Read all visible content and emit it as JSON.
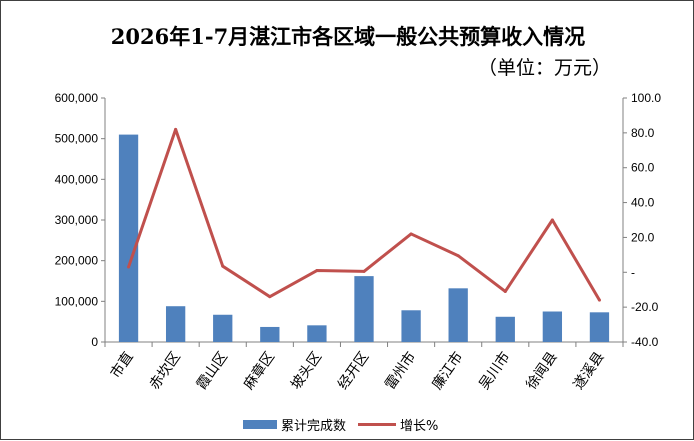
{
  "chart_data": {
    "type": "bar+line",
    "title": "2026年1-7月湛江市各区域一般公共预算收入情况",
    "subtitle": "（单位：万元）",
    "categories": [
      "市直",
      "赤坎区",
      "霞山区",
      "麻章区",
      "坡头区",
      "经开区",
      "雷州市",
      "廉江市",
      "吴川市",
      "徐闻县",
      "遂溪县"
    ],
    "series": [
      {
        "name": "累计完成数",
        "type": "bar",
        "axis": "left",
        "color": "#4f81bd",
        "values": [
          510000,
          88000,
          67000,
          37000,
          41000,
          162000,
          78000,
          132000,
          62000,
          75000,
          73000
        ]
      },
      {
        "name": "增长%",
        "type": "line",
        "axis": "right",
        "color": "#c0504d",
        "values": [
          3.0,
          82.0,
          3.5,
          -14.0,
          1.0,
          0.5,
          22.0,
          9.5,
          -11.0,
          30.0,
          -16.0
        ]
      }
    ],
    "y_left": {
      "ylim": [
        0,
        600000
      ],
      "ticks": [
        0,
        100000,
        200000,
        300000,
        400000,
        500000,
        600000
      ],
      "tick_labels": [
        "0",
        "100,000",
        "200,000",
        "300,000",
        "400,000",
        "500,000",
        "600,000"
      ]
    },
    "y_right": {
      "ylim": [
        -40,
        100
      ],
      "ticks": [
        -40,
        -20,
        0,
        20,
        40,
        60,
        80,
        100
      ],
      "tick_labels": [
        "-40.0",
        "-20.0",
        "-",
        "20.0",
        "40.0",
        "60.0",
        "80.0",
        "100.0"
      ]
    },
    "grid": false,
    "legend_position": "bottom"
  }
}
